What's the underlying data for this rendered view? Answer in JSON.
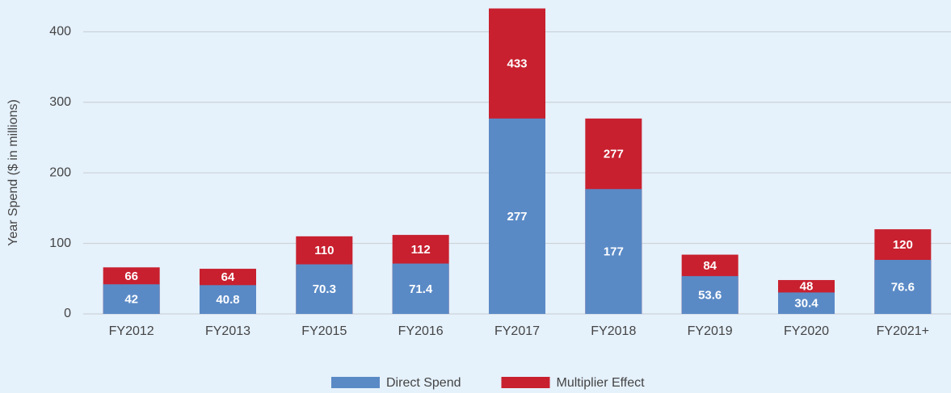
{
  "chart_data": {
    "type": "bar",
    "mode": "overlap",
    "y_label": "Year Spend ($ in millions)",
    "categories": [
      "FY2012",
      "FY2013",
      "FY2015",
      "FY2016",
      "FY2017",
      "FY2018",
      "FY2019",
      "FY2020",
      "FY2021+"
    ],
    "series": [
      {
        "name": "Direct Spend",
        "color": "#5a8ac6",
        "values": [
          42,
          40.8,
          70.3,
          71.4,
          277,
          177,
          53.6,
          30.4,
          76.6
        ]
      },
      {
        "name": "Multiplier Effect",
        "color": "#c8202f",
        "values": [
          66,
          64,
          110,
          112,
          433,
          277,
          84,
          48,
          120
        ]
      }
    ],
    "ylim": [
      0,
      445
    ],
    "yticks": [
      0,
      100,
      200,
      300,
      400
    ],
    "grid": true,
    "legend": "bottom"
  }
}
